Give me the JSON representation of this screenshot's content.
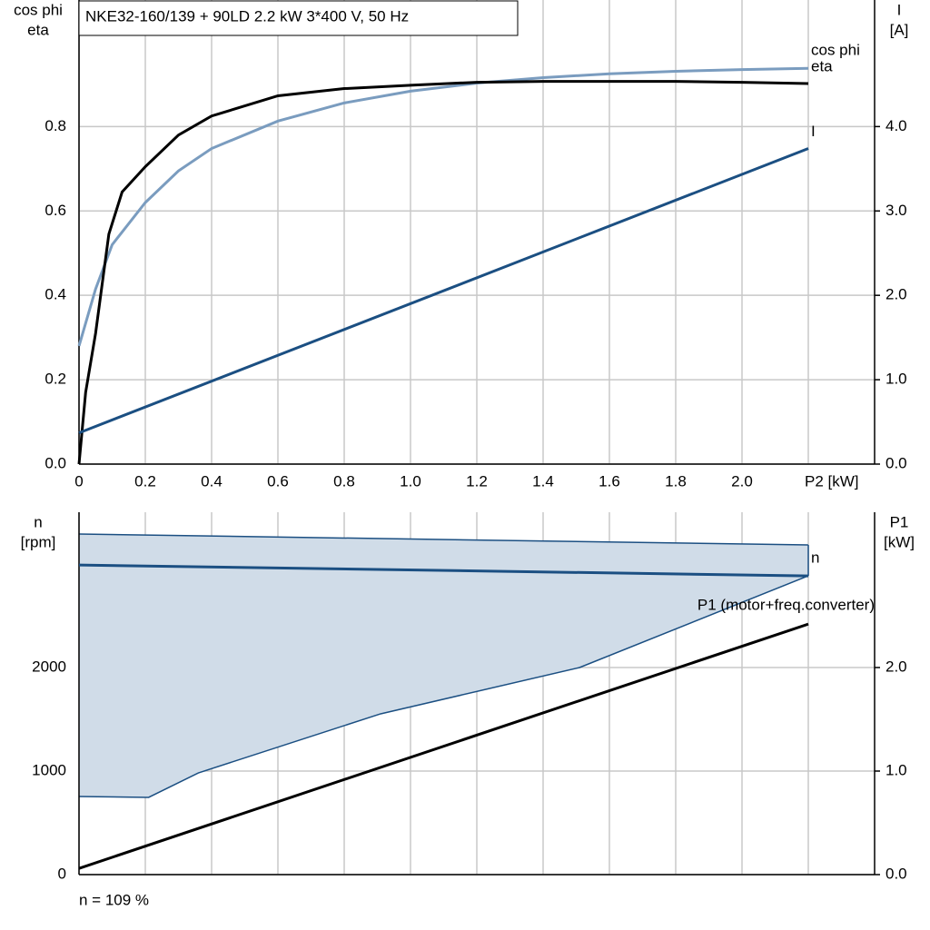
{
  "chart_data": [
    {
      "type": "line",
      "title": "NKE32-160/139 + 90LD   2.2 kW   3*400 V, 50 Hz",
      "ylabel": [
        "cos phi",
        "eta"
      ],
      "y2label": [
        "I",
        "[A]"
      ],
      "xlim": [
        0,
        2.4
      ],
      "xticks": [
        0,
        0.2,
        0.4,
        0.6,
        0.8,
        {
          "value": 1.0,
          "label": "1.0"
        },
        1.2,
        1.4,
        1.6,
        1.8,
        {
          "value": 2.0,
          "label": "2.0"
        },
        {
          "value": 2.2,
          "label": "P2 [kW]"
        }
      ],
      "ylim": [
        0,
        1.1
      ],
      "yticks": [
        {
          "value": 0,
          "label": "0.0"
        },
        0.2,
        0.4,
        0.6,
        0.8
      ],
      "y2lim": [
        0,
        5.5
      ],
      "y2ticks": [
        {
          "value": 0,
          "label": "0.0"
        },
        {
          "value": 1,
          "label": "1.0"
        },
        {
          "value": 2,
          "label": "2.0"
        },
        {
          "value": 3,
          "label": "3.0"
        },
        {
          "value": 4,
          "label": "4.0"
        }
      ],
      "grid": true,
      "series": [
        {
          "name": "cos phi",
          "color": "#7a9cbf",
          "x": [
            0,
            0.05,
            0.1,
            0.2,
            0.3,
            0.4,
            0.6,
            0.8,
            1.0,
            1.2,
            1.4,
            1.6,
            1.8,
            2.0,
            2.2
          ],
          "values": [
            0.28,
            0.415,
            0.52,
            0.62,
            0.695,
            0.748,
            0.813,
            0.856,
            0.884,
            0.903,
            0.916,
            0.925,
            0.931,
            0.935,
            0.938
          ]
        },
        {
          "name": "eta",
          "color": "#000000",
          "x": [
            0,
            0.02,
            0.05,
            0.09,
            0.13,
            0.2,
            0.3,
            0.4,
            0.6,
            0.8,
            1.0,
            1.2,
            1.4,
            1.6,
            1.8,
            2.0,
            2.2
          ],
          "values": [
            0,
            0.17,
            0.31,
            0.545,
            0.645,
            0.705,
            0.78,
            0.825,
            0.873,
            0.89,
            0.898,
            0.905,
            0.907,
            0.907,
            0.907,
            0.905,
            0.902
          ]
        },
        {
          "name": "I",
          "color": "#1b4f82",
          "axis": "y2",
          "x": [
            0,
            2.2
          ],
          "values": [
            0.37,
            3.74
          ]
        }
      ]
    },
    {
      "type": "line",
      "ylabel": [
        "n",
        "[rpm]"
      ],
      "y2label": [
        "P1",
        "[kW]"
      ],
      "annotation": "n = 109 %",
      "xlim": [
        0,
        2.4
      ],
      "xticks": [
        0,
        0.2,
        0.4,
        0.6,
        0.8,
        1.0,
        1.2,
        1.4,
        1.6,
        1.8,
        2.0,
        2.2
      ],
      "xtick_labels": false,
      "ylim": [
        0,
        3500
      ],
      "yticks": [
        0,
        1000,
        2000
      ],
      "y2lim": [
        0,
        3.5
      ],
      "y2ticks": [
        {
          "value": 0,
          "label": "0.0"
        },
        {
          "value": 1,
          "label": "1.0"
        },
        {
          "value": 2,
          "label": "2.0"
        }
      ],
      "grid": true,
      "band": {
        "color": "#d0dce8",
        "edge": "#1b4f82",
        "upper": {
          "x": [
            0,
            2.2
          ],
          "values": [
            3289,
            3184
          ]
        },
        "lower": {
          "x": [
            0,
            0.21,
            0.36,
            0.91,
            1.51,
            2.2
          ],
          "values": [
            754,
            746,
            982,
            1553,
            2000,
            2886
          ]
        }
      },
      "series": [
        {
          "name": "n",
          "color": "#1b4f82",
          "x": [
            0,
            2.2
          ],
          "values": [
            2990,
            2885
          ]
        },
        {
          "name": "P1 (motor+freq.converter)",
          "color": "#000000",
          "axis": "y2",
          "x": [
            0,
            2.2
          ],
          "values": [
            0.06,
            2.42
          ]
        }
      ]
    }
  ]
}
